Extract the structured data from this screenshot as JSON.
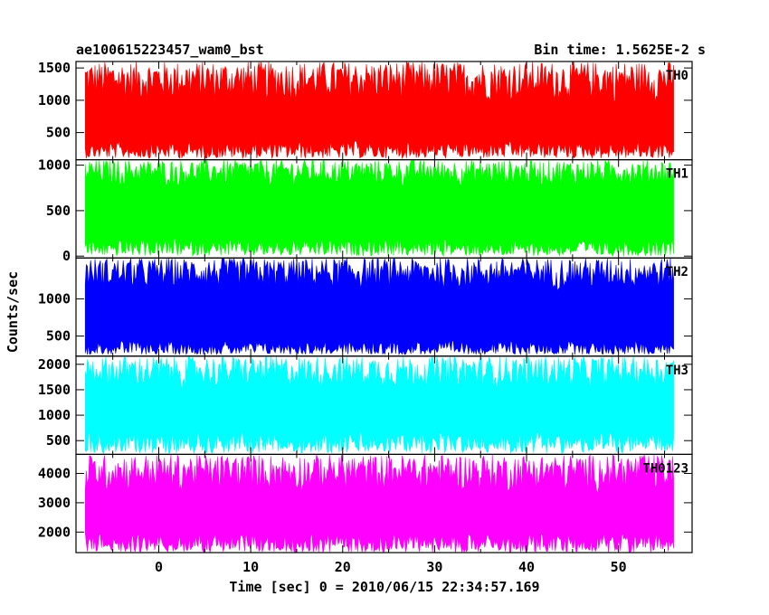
{
  "header": {
    "left_title": "ae100615223457_wam0_bst",
    "right_title": "Bin time: 1.5625E-2 s"
  },
  "chart_data": {
    "type": "line",
    "title": "ae100615223457_wam0_bst",
    "subtitle": "Bin time: 1.5625E-2 s",
    "xlabel": "Time [sec] 0 = 2010/06/15 22:34:57.169",
    "ylabel": "Counts/sec",
    "xlim": [
      -9,
      58
    ],
    "x_ticks": [
      0,
      10,
      20,
      30,
      40,
      50
    ],
    "x_data_range": [
      -8,
      56
    ],
    "grid": false,
    "panels": [
      {
        "name": "TH0",
        "color": "#ff0000",
        "ylim": [
          80,
          1600
        ],
        "y_ticks": [
          500,
          1000,
          1500
        ],
        "band": {
          "low_min": 100,
          "low_max": 380,
          "high_min": 950,
          "high_max": 1600
        }
      },
      {
        "name": "TH1",
        "color": "#00ff00",
        "ylim": [
          -20,
          1060
        ],
        "y_ticks": [
          0,
          500,
          1000
        ],
        "band": {
          "low_min": 0,
          "low_max": 200,
          "high_min": 750,
          "high_max": 1060
        }
      },
      {
        "name": "TH2",
        "color": "#0000ff",
        "ylim": [
          230,
          1550
        ],
        "y_ticks": [
          500,
          1000
        ],
        "band": {
          "low_min": 250,
          "low_max": 450,
          "high_min": 1100,
          "high_max": 1550
        }
      },
      {
        "name": "TH3",
        "color": "#00ffff",
        "ylim": [
          230,
          2160
        ],
        "y_ticks": [
          500,
          1000,
          1500,
          2000
        ],
        "band": {
          "low_min": 250,
          "low_max": 700,
          "high_min": 1500,
          "high_max": 2160
        }
      },
      {
        "name": "TH0123",
        "color": "#ff00ff",
        "ylim": [
          1300,
          4650
        ],
        "y_ticks": [
          2000,
          3000,
          4000
        ],
        "band": {
          "low_min": 1300,
          "low_max": 2000,
          "high_min": 3300,
          "high_max": 4650
        }
      }
    ]
  }
}
